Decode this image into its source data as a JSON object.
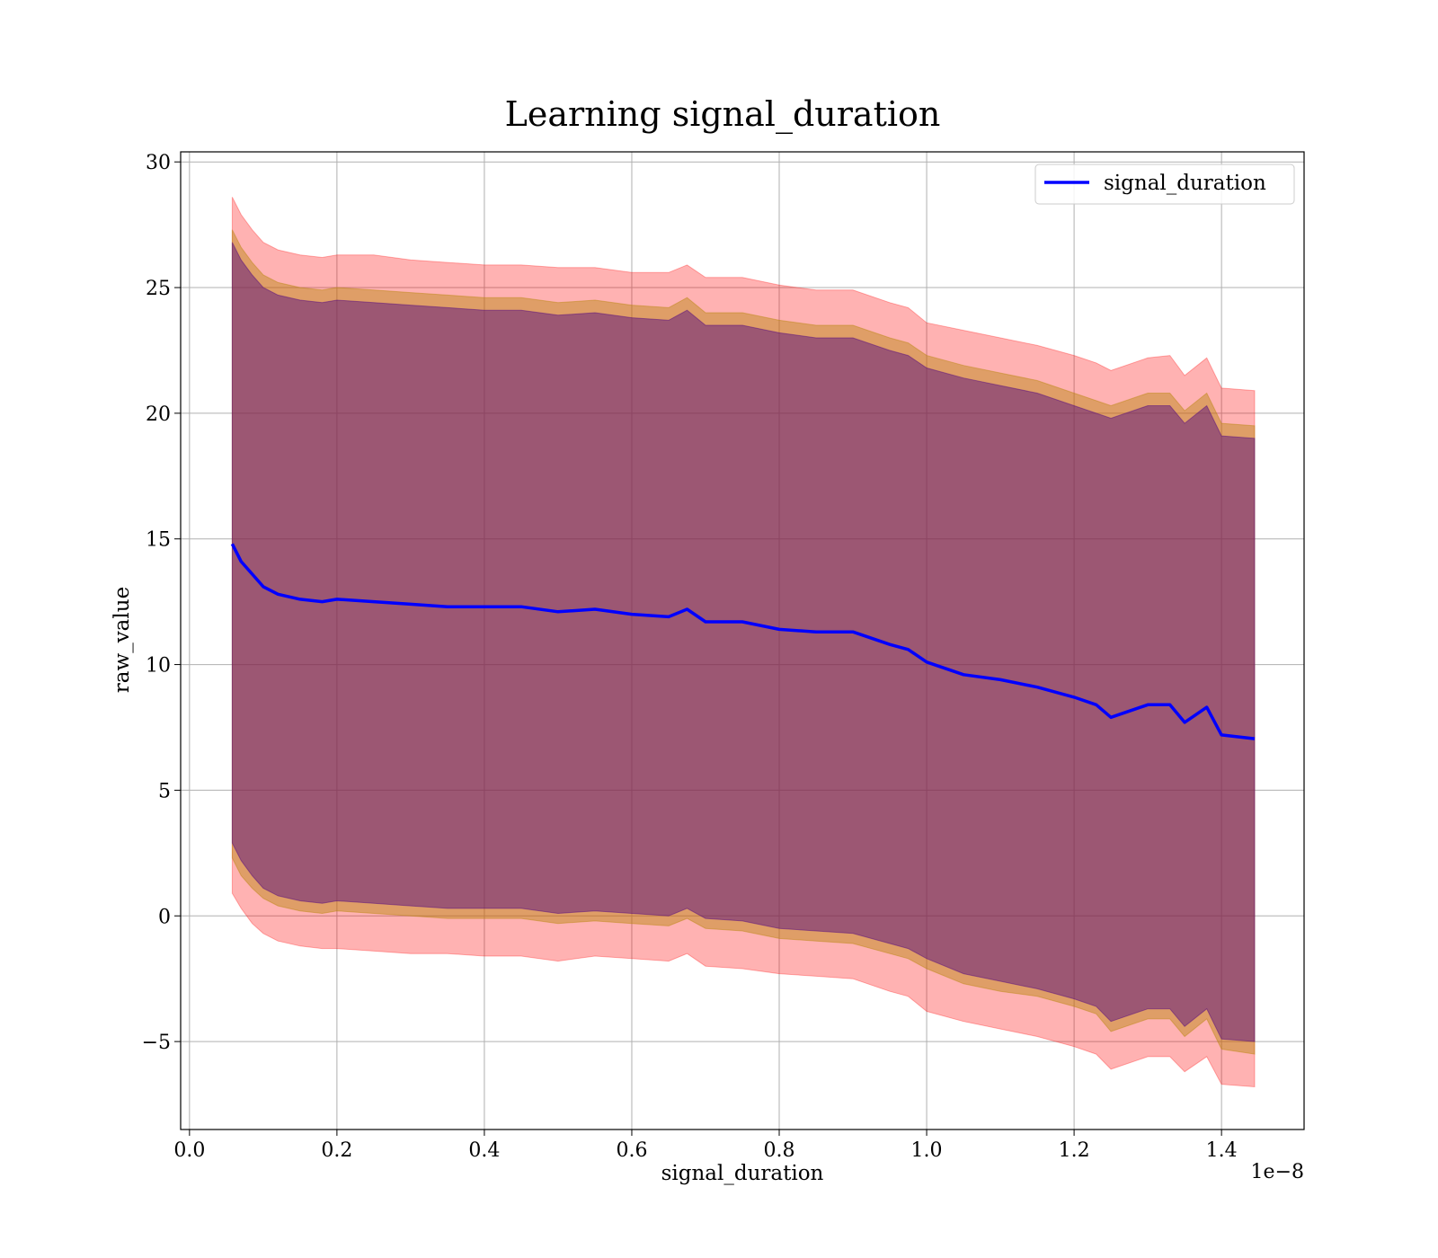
{
  "chart_data": {
    "type": "line",
    "title": "Learning signal_duration",
    "xlabel": "signal_duration",
    "ylabel": "raw_value",
    "x_offset_label": "1e−8",
    "xlim": [
      -0.012,
      1.512
    ],
    "ylim": [
      -8.5,
      30.4
    ],
    "x_ticks": [
      0.0,
      0.2,
      0.4,
      0.6,
      0.8,
      1.0,
      1.2,
      1.4
    ],
    "x_tick_labels": [
      "0.0",
      "0.2",
      "0.4",
      "0.6",
      "0.8",
      "1.0",
      "1.2",
      "1.4"
    ],
    "y_ticks": [
      -5,
      0,
      5,
      10,
      15,
      20,
      25,
      30
    ],
    "y_tick_labels": [
      "−5",
      "0",
      "5",
      "10",
      "15",
      "20",
      "25",
      "30"
    ],
    "grid": true,
    "legend_position": "top-right",
    "series": [
      {
        "name": "signal_duration",
        "color": "#0000ff",
        "x": [
          0.058,
          0.07,
          0.085,
          0.1,
          0.12,
          0.15,
          0.18,
          0.2,
          0.25,
          0.3,
          0.35,
          0.4,
          0.45,
          0.5,
          0.55,
          0.6,
          0.65,
          0.675,
          0.7,
          0.75,
          0.8,
          0.85,
          0.9,
          0.95,
          0.975,
          1.0,
          1.05,
          1.1,
          1.15,
          1.2,
          1.23,
          1.25,
          1.3,
          1.33,
          1.35,
          1.38,
          1.4,
          1.445
        ],
        "values": [
          14.8,
          14.1,
          13.6,
          13.1,
          12.8,
          12.6,
          12.5,
          12.6,
          12.5,
          12.4,
          12.3,
          12.3,
          12.3,
          12.1,
          12.2,
          12.0,
          11.9,
          12.2,
          11.7,
          11.7,
          11.4,
          11.3,
          11.3,
          10.8,
          10.6,
          10.1,
          9.6,
          9.4,
          9.1,
          8.7,
          8.4,
          7.9,
          8.4,
          8.4,
          7.7,
          8.3,
          7.2,
          7.05
        ]
      }
    ],
    "bands": [
      {
        "color": "#ff0000",
        "opacity": 0.3,
        "x": [
          0.058,
          0.07,
          0.085,
          0.1,
          0.12,
          0.15,
          0.18,
          0.2,
          0.25,
          0.3,
          0.35,
          0.4,
          0.45,
          0.5,
          0.55,
          0.6,
          0.65,
          0.675,
          0.7,
          0.75,
          0.8,
          0.85,
          0.9,
          0.95,
          0.975,
          1.0,
          1.05,
          1.1,
          1.15,
          1.2,
          1.23,
          1.25,
          1.3,
          1.33,
          1.35,
          1.38,
          1.4,
          1.445
        ],
        "upper": [
          28.6,
          27.9,
          27.3,
          26.8,
          26.5,
          26.3,
          26.2,
          26.3,
          26.3,
          26.1,
          26.0,
          25.9,
          25.9,
          25.8,
          25.8,
          25.6,
          25.6,
          25.9,
          25.4,
          25.4,
          25.1,
          24.9,
          24.9,
          24.4,
          24.2,
          23.6,
          23.3,
          23.0,
          22.7,
          22.3,
          22.0,
          21.7,
          22.2,
          22.3,
          21.5,
          22.2,
          21.0,
          20.9
        ],
        "lower": [
          0.9,
          0.3,
          -0.3,
          -0.7,
          -1.0,
          -1.2,
          -1.3,
          -1.3,
          -1.4,
          -1.5,
          -1.5,
          -1.6,
          -1.6,
          -1.8,
          -1.6,
          -1.7,
          -1.8,
          -1.5,
          -2.0,
          -2.1,
          -2.3,
          -2.4,
          -2.5,
          -3.0,
          -3.2,
          -3.8,
          -4.2,
          -4.5,
          -4.8,
          -5.2,
          -5.5,
          -6.1,
          -5.6,
          -5.6,
          -6.2,
          -5.6,
          -6.7,
          -6.8
        ]
      },
      {
        "color": "#b8860b",
        "opacity": 0.45,
        "x": [
          0.058,
          0.07,
          0.085,
          0.1,
          0.12,
          0.15,
          0.18,
          0.2,
          0.25,
          0.3,
          0.35,
          0.4,
          0.45,
          0.5,
          0.55,
          0.6,
          0.65,
          0.675,
          0.7,
          0.75,
          0.8,
          0.85,
          0.9,
          0.95,
          0.975,
          1.0,
          1.05,
          1.1,
          1.15,
          1.2,
          1.23,
          1.25,
          1.3,
          1.33,
          1.35,
          1.38,
          1.4,
          1.445
        ],
        "upper": [
          27.3,
          26.6,
          26.0,
          25.5,
          25.2,
          25.0,
          24.9,
          25.0,
          24.9,
          24.8,
          24.7,
          24.6,
          24.6,
          24.4,
          24.5,
          24.3,
          24.2,
          24.6,
          24.0,
          24.0,
          23.7,
          23.5,
          23.5,
          23.0,
          22.8,
          22.3,
          21.9,
          21.6,
          21.3,
          20.8,
          20.5,
          20.3,
          20.8,
          20.8,
          20.1,
          20.8,
          19.6,
          19.5
        ],
        "lower": [
          2.3,
          1.6,
          1.1,
          0.7,
          0.4,
          0.2,
          0.1,
          0.2,
          0.1,
          0.0,
          -0.1,
          -0.1,
          -0.1,
          -0.3,
          -0.2,
          -0.3,
          -0.4,
          -0.1,
          -0.5,
          -0.6,
          -0.9,
          -1.0,
          -1.1,
          -1.5,
          -1.7,
          -2.1,
          -2.7,
          -3.0,
          -3.2,
          -3.6,
          -3.9,
          -4.6,
          -4.1,
          -4.1,
          -4.8,
          -4.1,
          -5.3,
          -5.5
        ]
      },
      {
        "color": "#4b0082",
        "opacity": 0.45,
        "x": [
          0.058,
          0.07,
          0.085,
          0.1,
          0.12,
          0.15,
          0.18,
          0.2,
          0.25,
          0.3,
          0.35,
          0.4,
          0.45,
          0.5,
          0.55,
          0.6,
          0.65,
          0.675,
          0.7,
          0.75,
          0.8,
          0.85,
          0.9,
          0.95,
          0.975,
          1.0,
          1.05,
          1.1,
          1.15,
          1.2,
          1.23,
          1.25,
          1.3,
          1.33,
          1.35,
          1.38,
          1.4,
          1.445
        ],
        "upper": [
          26.8,
          26.1,
          25.5,
          25.0,
          24.7,
          24.5,
          24.4,
          24.5,
          24.4,
          24.3,
          24.2,
          24.1,
          24.1,
          23.9,
          24.0,
          23.8,
          23.7,
          24.1,
          23.5,
          23.5,
          23.2,
          23.0,
          23.0,
          22.5,
          22.3,
          21.8,
          21.4,
          21.1,
          20.8,
          20.3,
          20.0,
          19.8,
          20.3,
          20.3,
          19.6,
          20.3,
          19.1,
          19.0
        ],
        "lower": [
          2.9,
          2.2,
          1.6,
          1.1,
          0.8,
          0.6,
          0.5,
          0.6,
          0.5,
          0.4,
          0.3,
          0.3,
          0.3,
          0.1,
          0.2,
          0.1,
          0.0,
          0.3,
          -0.1,
          -0.2,
          -0.5,
          -0.6,
          -0.7,
          -1.1,
          -1.3,
          -1.7,
          -2.3,
          -2.6,
          -2.9,
          -3.3,
          -3.6,
          -4.2,
          -3.7,
          -3.7,
          -4.4,
          -3.7,
          -4.9,
          -5.0
        ]
      }
    ]
  }
}
